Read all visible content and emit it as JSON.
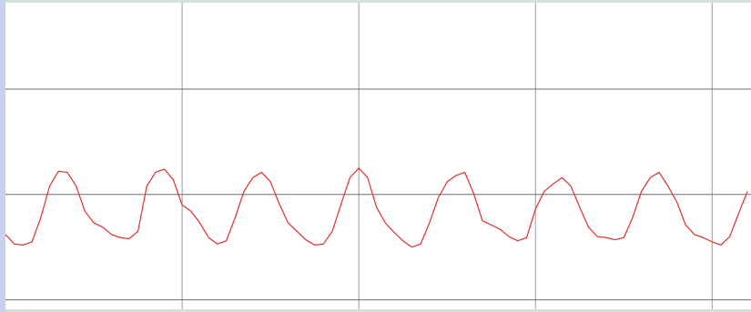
{
  "chart_data": {
    "type": "line",
    "color": "#e0302c",
    "grid": true,
    "xlim": [
      0,
      4.22
    ],
    "ylim": [
      -1.09,
      1.82
    ],
    "xticks": [
      1,
      2,
      3,
      4
    ],
    "yticks": [
      -1,
      0,
      1
    ],
    "x": [
      0,
      0.05,
      0.1,
      0.15,
      0.2,
      0.25,
      0.3,
      0.35,
      0.4,
      0.45,
      0.5,
      0.55,
      0.6,
      0.65,
      0.7,
      0.75,
      0.8,
      0.85,
      0.9,
      0.95,
      1,
      1.05,
      1.1,
      1.15,
      1.2,
      1.25,
      1.3,
      1.35,
      1.4,
      1.45,
      1.5,
      1.55,
      1.6,
      1.65,
      1.7,
      1.75,
      1.8,
      1.85,
      1.9,
      1.95,
      2,
      2.05,
      2.1,
      2.15,
      2.2,
      2.25,
      2.3,
      2.35,
      2.4,
      2.45,
      2.5,
      2.55,
      2.6,
      2.65,
      2.7,
      2.75,
      2.8,
      2.85,
      2.9,
      2.95,
      3,
      3.05,
      3.1,
      3.15,
      3.2,
      3.25,
      3.3,
      3.35,
      3.4,
      3.45,
      3.5,
      3.55,
      3.6,
      3.65,
      3.7,
      3.75,
      3.8,
      3.85,
      3.9,
      3.95,
      4,
      4.05,
      4.1,
      4.15,
      4.2
    ],
    "values": [
      -0.38,
      -0.47,
      -0.48,
      -0.45,
      -0.22,
      0.08,
      0.22,
      0.21,
      0.08,
      -0.16,
      -0.27,
      -0.31,
      -0.38,
      -0.41,
      -0.42,
      -0.35,
      0.08,
      0.21,
      0.24,
      0.14,
      -0.1,
      -0.16,
      -0.27,
      -0.41,
      -0.47,
      -0.44,
      -0.22,
      0.03,
      0.16,
      0.21,
      0.12,
      -0.09,
      -0.27,
      -0.35,
      -0.43,
      -0.48,
      -0.47,
      -0.35,
      -0.09,
      0.16,
      0.25,
      0.16,
      -0.12,
      -0.27,
      -0.36,
      -0.44,
      -0.5,
      -0.47,
      -0.27,
      -0.03,
      0.12,
      0.18,
      0.21,
      0.01,
      -0.25,
      -0.29,
      -0.33,
      -0.4,
      -0.44,
      -0.41,
      -0.14,
      0.03,
      0.1,
      0.16,
      0.08,
      -0.12,
      -0.31,
      -0.4,
      -0.41,
      -0.43,
      -0.41,
      -0.22,
      0.03,
      0.16,
      0.21,
      0.08,
      -0.07,
      -0.29,
      -0.38,
      -0.41,
      -0.45,
      -0.48,
      -0.4,
      -0.18,
      0.03
    ]
  }
}
